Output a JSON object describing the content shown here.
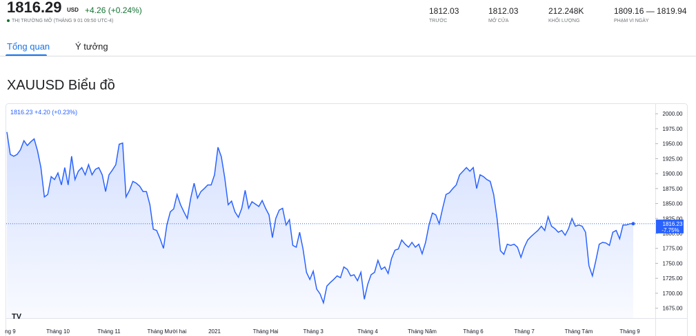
{
  "header": {
    "price": "1816.29",
    "currency": "USD",
    "change": "+4.26 (+0.24%)",
    "status": "THỊ TRƯỜNG MỞ (THÁNG 9 01 09:50 UTC-4)",
    "stats": [
      {
        "value": "1812.03",
        "label": "TRƯỚC"
      },
      {
        "value": "1812.03",
        "label": "MỞ CỬA"
      },
      {
        "value": "212.248K",
        "label": "KHỐI LƯỢNG"
      },
      {
        "value": "1809.16 — 1819.94",
        "label": "PHẠM VI NGÀY"
      }
    ]
  },
  "tabs": [
    "Tổng quan",
    "Ý tưởng"
  ],
  "section_title": "XAUUSD Biểu đồ",
  "chart_data": {
    "type": "line",
    "legend": "1816.23  +4.20 (+0.23%)",
    "color": "#2962ff",
    "last_price_label": "1816.23",
    "last_change_label": "-7.75%",
    "grid": false,
    "ylim": [
      1662.5,
      2006
    ],
    "yticks": [
      {
        "value": 2000,
        "label": "2000.00"
      },
      {
        "value": 1975,
        "label": "1975.00"
      },
      {
        "value": 1950,
        "label": "1950.00"
      },
      {
        "value": 1925,
        "label": "1925.00"
      },
      {
        "value": 1900,
        "label": "1900.00"
      },
      {
        "value": 1875,
        "label": "1875.00"
      },
      {
        "value": 1850,
        "label": "1850.00"
      },
      {
        "value": 1825,
        "label": "1825.00"
      },
      {
        "value": 1800,
        "label": "1800.00"
      },
      {
        "value": 1775,
        "label": "1775.00"
      },
      {
        "value": 1750,
        "label": "1750.00"
      },
      {
        "value": 1725,
        "label": "1725.00"
      },
      {
        "value": 1700,
        "label": "1700.00"
      },
      {
        "value": 1675,
        "label": "1675.00"
      }
    ],
    "categories": [
      null,
      "ng 9",
      null,
      null,
      null,
      null,
      null,
      null,
      null,
      null,
      null,
      null,
      null,
      null,
      null,
      "Tháng 10",
      null,
      null,
      null,
      null,
      null,
      null,
      null,
      null,
      null,
      null,
      null,
      null,
      null,
      null,
      "Tháng 11",
      null,
      null,
      null,
      null,
      null,
      null,
      null,
      null,
      null,
      null,
      null,
      null,
      null,
      null,
      null,
      null,
      "Tháng Mười hai",
      null,
      null,
      null,
      null,
      null,
      null,
      null,
      null,
      null,
      null,
      null,
      null,
      null,
      "2021",
      null,
      null,
      null,
      null,
      null,
      null,
      null,
      null,
      null,
      null,
      null,
      null,
      null,
      null,
      "Tháng Hai",
      null,
      null,
      null,
      null,
      null,
      null,
      null,
      null,
      null,
      null,
      null,
      null,
      null,
      "Tháng 3",
      null,
      null,
      null,
      null,
      null,
      null,
      null,
      null,
      null,
      null,
      null,
      null,
      null,
      null,
      null,
      "Tháng 4",
      null,
      null,
      null,
      null,
      null,
      null,
      null,
      null,
      null,
      null,
      null,
      null,
      null,
      null,
      null,
      "Tháng Năm",
      null,
      null,
      null,
      null,
      null,
      null,
      null,
      null,
      null,
      null,
      null,
      null,
      null,
      null,
      "Tháng 6",
      null,
      null,
      null,
      null,
      null,
      null,
      null,
      null,
      null,
      null,
      null,
      null,
      null,
      null,
      "Tháng 7",
      null,
      null,
      null,
      null,
      null,
      null,
      null,
      null,
      null,
      null,
      null,
      null,
      null,
      null,
      null,
      "Tháng Tám",
      null,
      null,
      null,
      null,
      null,
      null,
      null,
      null,
      null,
      null,
      null,
      null,
      null,
      null,
      "Tháng 9",
      null
    ],
    "values": [
      1969.5,
      1932,
      1929,
      1932,
      1940,
      1955,
      1947,
      1953,
      1958,
      1938,
      1910,
      1861,
      1865,
      1895,
      1890,
      1901,
      1881,
      1910,
      1881,
      1929,
      1890,
      1904,
      1910,
      1898,
      1915,
      1898,
      1907,
      1910,
      1898,
      1870,
      1898,
      1906,
      1915,
      1949,
      1951,
      1861,
      1872,
      1887,
      1884,
      1879,
      1870,
      1870,
      1848,
      1807,
      1805,
      1791,
      1775,
      1814,
      1836,
      1841,
      1865,
      1848,
      1836,
      1825,
      1859,
      1884,
      1859,
      1870,
      1875,
      1881,
      1881,
      1898,
      1944,
      1928,
      1893,
      1848,
      1854,
      1836,
      1827,
      1842,
      1872,
      1842,
      1853,
      1849,
      1845,
      1855,
      1842,
      1831,
      1793,
      1825,
      1839,
      1842,
      1814,
      1823,
      1780,
      1777,
      1802,
      1774,
      1735,
      1723,
      1737,
      1707,
      1699,
      1684,
      1712,
      1718,
      1723,
      1729,
      1726,
      1744,
      1740,
      1729,
      1731,
      1721,
      1735,
      1690,
      1715,
      1731,
      1735,
      1755,
      1740,
      1744,
      1733,
      1758,
      1772,
      1774,
      1789,
      1782,
      1777,
      1785,
      1777,
      1782,
      1766,
      1785,
      1814,
      1834,
      1831,
      1816,
      1842,
      1865,
      1868,
      1875,
      1881,
      1898,
      1904,
      1910,
      1904,
      1910,
      1875,
      1898,
      1895,
      1890,
      1887,
      1865,
      1825,
      1771,
      1765,
      1782,
      1780,
      1782,
      1777,
      1760,
      1777,
      1789,
      1795,
      1800,
      1805,
      1812,
      1805,
      1828,
      1812,
      1808,
      1802,
      1805,
      1797,
      1808,
      1825,
      1812,
      1814,
      1812,
      1802,
      1746,
      1729,
      1754,
      1782,
      1785,
      1784,
      1780,
      1802,
      1805,
      1791,
      1814,
      1814,
      1816,
      1816.23
    ]
  }
}
